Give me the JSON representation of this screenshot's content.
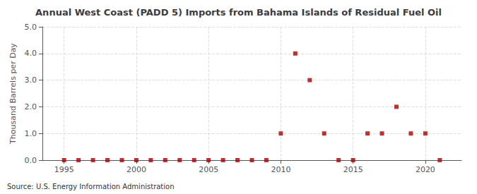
{
  "chart_data": {
    "type": "scatter",
    "title": "Annual West Coast (PADD 5) Imports from Bahama Islands of Residual Fuel Oil",
    "ylabel": "Thousand Barrels per Day",
    "source": "Source: U.S. Energy Information Administration",
    "x": [
      1995,
      1996,
      1997,
      1998,
      1999,
      2000,
      2001,
      2002,
      2003,
      2004,
      2005,
      2006,
      2007,
      2008,
      2009,
      2010,
      2011,
      2012,
      2013,
      2014,
      2015,
      2016,
      2017,
      2018,
      2019,
      2020,
      2021
    ],
    "values": [
      0.0,
      0.0,
      0.0,
      0.0,
      0.0,
      0.0,
      0.0,
      0.0,
      0.0,
      0.0,
      0.0,
      0.0,
      0.0,
      0.0,
      0.0,
      1.0,
      4.0,
      3.0,
      1.0,
      0.0,
      0.0,
      1.0,
      1.0,
      2.0,
      1.0,
      1.0,
      0.0
    ],
    "color": "#aa0000",
    "marker": "square",
    "xlim": [
      1993.5,
      2022.5
    ],
    "xticks": [
      1995,
      2000,
      2005,
      2010,
      2015,
      2020
    ],
    "ylim": [
      0.0,
      5.0
    ],
    "yticks": [
      {
        "value": 0,
        "label": "0.0"
      },
      {
        "value": 1,
        "label": "1.0"
      },
      {
        "value": 2,
        "label": "2.0"
      },
      {
        "value": 3,
        "label": "3.0"
      },
      {
        "value": 4,
        "label": "4.0"
      },
      {
        "value": 5,
        "label": "5.0"
      }
    ],
    "grid": true
  }
}
